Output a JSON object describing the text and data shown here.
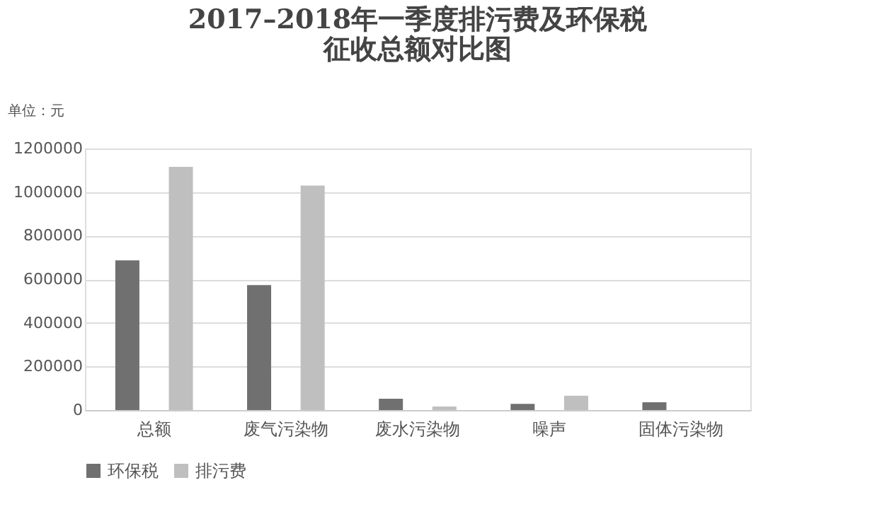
{
  "chart_data": {
    "type": "bar",
    "title": "2017–2018年一季度排污费及环保税",
    "subtitle": "征收总额对比图",
    "ylabel": "单位：元",
    "categories": [
      "总额",
      "废气污染物",
      "废水污染物",
      "噪声",
      "固体污染物"
    ],
    "series": [
      {
        "name": "环保税",
        "color": "#707070",
        "values": [
          687000,
          573000,
          52000,
          28000,
          36000
        ]
      },
      {
        "name": "排污费",
        "color": "#bfbfbf",
        "values": [
          1116000,
          1030000,
          16000,
          66000,
          0
        ]
      }
    ],
    "ylim": [
      0,
      1200000
    ],
    "yticks": [
      0,
      200000,
      400000,
      600000,
      800000,
      1000000,
      1200000
    ],
    "grid": "y",
    "legend": "bottom"
  }
}
